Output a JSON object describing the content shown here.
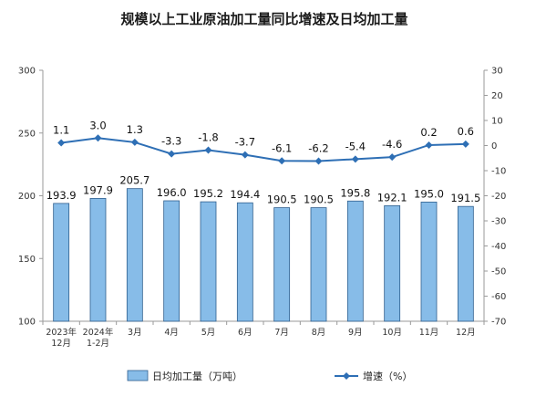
{
  "chart_data": {
    "type": "bar+line",
    "title": "规模以上工业原油加工量同比增速及日均加工量",
    "categories": [
      [
        "2023年",
        "12月"
      ],
      [
        "2024年",
        "1-2月"
      ],
      [
        "3月"
      ],
      [
        "4月"
      ],
      [
        "5月"
      ],
      [
        "6月"
      ],
      [
        "7月"
      ],
      [
        "8月"
      ],
      [
        "9月"
      ],
      [
        "10月"
      ],
      [
        "11月"
      ],
      [
        "12月"
      ]
    ],
    "series": [
      {
        "name": "日均加工量（万吨）",
        "type": "bar",
        "axis": "left",
        "values": [
          193.9,
          197.9,
          205.7,
          196.0,
          195.2,
          194.4,
          190.5,
          190.5,
          195.8,
          192.1,
          195.0,
          191.5
        ],
        "labels": [
          "193.9",
          "197.9",
          "205.7",
          "196.0",
          "195.2",
          "194.4",
          "190.5",
          "190.5",
          "195.8",
          "192.1",
          "195.0",
          "191.5"
        ],
        "color": "#87BCE8"
      },
      {
        "name": "增速（%）",
        "type": "line",
        "axis": "right",
        "values": [
          1.1,
          3.0,
          1.3,
          -3.3,
          -1.8,
          -3.7,
          -6.1,
          -6.2,
          -5.4,
          -4.6,
          0.2,
          0.6
        ],
        "labels": [
          "1.1",
          "3.0",
          "1.3",
          "-3.3",
          "-1.8",
          "-3.7",
          "-6.1",
          "-6.2",
          "-5.4",
          "-4.6",
          "0.2",
          "0.6"
        ],
        "color": "#2E6FB5"
      }
    ],
    "ylim_left": [
      100,
      300
    ],
    "yticks_left": [
      "100",
      "150",
      "200",
      "250",
      "300"
    ],
    "ylim_right": [
      -70,
      30
    ],
    "yticks_right": [
      "30",
      "20",
      "10",
      "0",
      "-10",
      "-20",
      "-30",
      "-40",
      "-50",
      "-60",
      "-70"
    ],
    "grid": false,
    "legend": "bottom"
  }
}
